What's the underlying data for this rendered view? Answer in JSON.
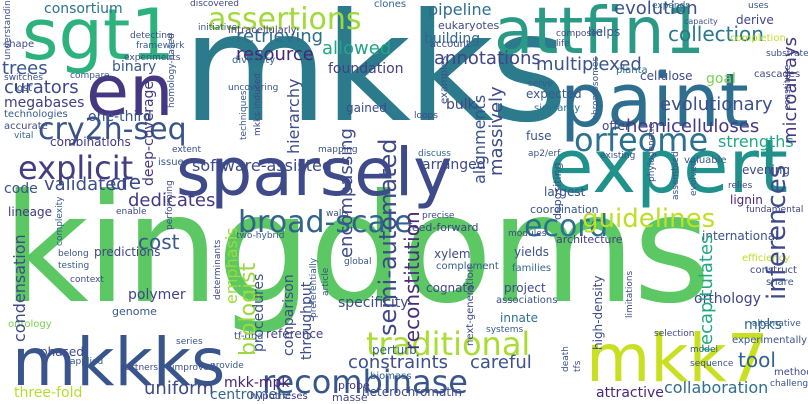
{
  "words": {
    "mkks": "mkks",
    "kingdoms": "kingdoms",
    "expert": "expert",
    "paint": "paint",
    "sparsely": "sparsely",
    "attfin1": "attfin1",
    "mkkks": "mkkks",
    "mkk7": "mkk7",
    "sgt1": "sgt1",
    "en": "en",
    "assertions": "assertions",
    "orfeome": "orfeome",
    "cry2h_seq": "cry2h-seq",
    "recombinase": "recombinase",
    "traditional": "traditional",
    "explicit": "explicit",
    "broad_scale": "broad-scale",
    "ecord": "ecord",
    "guidelines": "guidelines",
    "resource": "resource",
    "retrieving": "retrieving",
    "allowed": "allowed",
    "annotations": "annotations",
    "multiplexed": "multiplexed",
    "hemicelluloses": "hemicelluloses",
    "curators": "curators",
    "megabases": "megabases",
    "trees": "trees",
    "binary": "binary",
    "consortium": "consortium",
    "pipeline": "pipeline",
    "evolution": "evolution",
    "collection": "collection",
    "eukaryotes": "eukaryotes",
    "building": "building",
    "foundation": "foundation",
    "evolutionary": "evolutionary",
    "goal": "goal",
    "microarrays": "microarrays",
    "strengths": "strengths",
    "software_assisted": "software-assisted",
    "validated": "validated",
    "dedicates": "dedicates",
    "cost": "cost",
    "code": "code",
    "cre": "cre",
    "emphasis": "emphasis",
    "polymer": "polymer",
    "condensation": "condensation",
    "biologist": "biologist",
    "semi_automated": "semi-automated",
    "reconstitution": "reconstitution",
    "inferences": "inferences",
    "recapitulates": "recapitulates",
    "mpks": "mpks",
    "orthology": "orthology",
    "tool": "tool",
    "mkk_mpk": "mkk-mpk",
    "centromere": "centromere",
    "uniform": "uniform",
    "constraints": "constraints",
    "careful": "careful",
    "collaboration": "collaboration",
    "attractive": "attractive",
    "three_fold": "three-fold",
    "one_third": "one-third",
    "deep_coverage": "deep-coverage",
    "combinations": "combinations",
    "hierarchy": "hierarchy",
    "encompassing": "encompassing",
    "arranged": "arranged",
    "bulk": "bulk",
    "massively": "massively",
    "alignments": "alignments",
    "offer": "offer",
    "largest": "largest",
    "comparison": "comparison",
    "throughput": "throughput",
    "procedures": "procedures",
    "predictions": "predictions",
    "genome": "genome",
    "phased": "phased",
    "ontology": "ontology",
    "tf_dna": "tf-dna",
    "reference": "reference",
    "heterochromatin": "heterochromatin",
    "biomass": "biomass",
    "perturb": "perturb",
    "probe": "probe",
    "masse": "masse",
    "hypotheses": "hypotheses",
    "xylem": "xylem",
    "yields": "yields",
    "families": "families",
    "project": "project",
    "associations": "associations",
    "complement": "complement",
    "cognate": "cognate",
    "innate": "innate",
    "specificity": "specificity",
    "next_generation": "next-generation",
    "high_density": "high-density",
    "feed_forward": "feed-forward",
    "architecture": "architecture",
    "international": "international",
    "lignin": "lignin",
    "coordination": "coordination",
    "depositing": "depositing",
    "fuse": "fuse",
    "similarity": "similarity",
    "expected": "expected",
    "cellulose": "cellulose",
    "planta": "planta",
    "lineage": "lineage",
    "gained": "gained",
    "helps": "helps",
    "account": "account",
    "intracellularly": "intracellularly",
    "initiative": "initiative",
    "diversity": "diversity",
    "clones": "clones",
    "discovered": "discovered",
    "expands": "expands",
    "capacity": "capacity",
    "derive": "derive",
    "completion": "completion",
    "cascades": "cascades",
    "substrates": "substrates",
    "shape": "shape",
    "lost": "lost",
    "technologies": "technologies",
    "accurate": "accurate",
    "vital": "vital",
    "issue": "issue",
    "extent": "extent",
    "mapping": "mapping",
    "discuss": "discuss",
    "evening": "evening",
    "valuable": "valuable",
    "existing": "existing",
    "phylogenetic": "phylogenetic",
    "relies": "relies",
    "fundamental": "fundamental",
    "efficiency": "efficiency",
    "construct": "construct",
    "share": "share",
    "experimentally": "experimentally",
    "methods": "methods",
    "challenge": "challenge",
    "model": "model",
    "death": "death",
    "tfs": "tfs",
    "selection": "selection",
    "limitations": "limitations",
    "systems": "systems",
    "article": "article",
    "global": "global",
    "modules": "modules",
    "provide": "provide",
    "improved": "improved",
    "partners": "partners",
    "applied": "applied",
    "series": "series",
    "context": "context",
    "testing": "testing",
    "belong": "belong",
    "enable": "enable",
    "preferentially": "preferentially",
    "determinants": "determinants",
    "two_hybrid": "two-hybrid",
    "walls": "walls",
    "precise": "precise",
    "ap2_erf": "ap2/erf",
    "chromosomes": "chromosomes",
    "serve": "serve",
    "composed": "composed",
    "life": "life",
    "examples": "examples",
    "compare": "compare",
    "switches": "switches",
    "detecting": "detecting",
    "framework": "framework",
    "experiments": "experiments",
    "mkks_induced": "mkks-induced",
    "techniques": "techniques",
    "uncovering": "uncovering",
    "homology_based": "homology-based",
    "performing": "performing",
    "complexity": "complexity",
    "sequence": "sequence",
    "alternative": "alternative",
    "understanding": "understanding",
    "loops": "loops",
    "evolved": "evolved",
    "assembled": "assembled",
    "constitute": "constitute",
    "uses": "uses"
  },
  "colors": {
    "dark_purple": "#440154",
    "indigo": "#482878",
    "blue": "#3e4a89",
    "steel": "#31688e",
    "teal": "#26828e",
    "sea": "#1f9e89",
    "green": "#35b779",
    "lime": "#6ece58",
    "yellow_green": "#b5de2b",
    "yellow": "#fde725"
  }
}
